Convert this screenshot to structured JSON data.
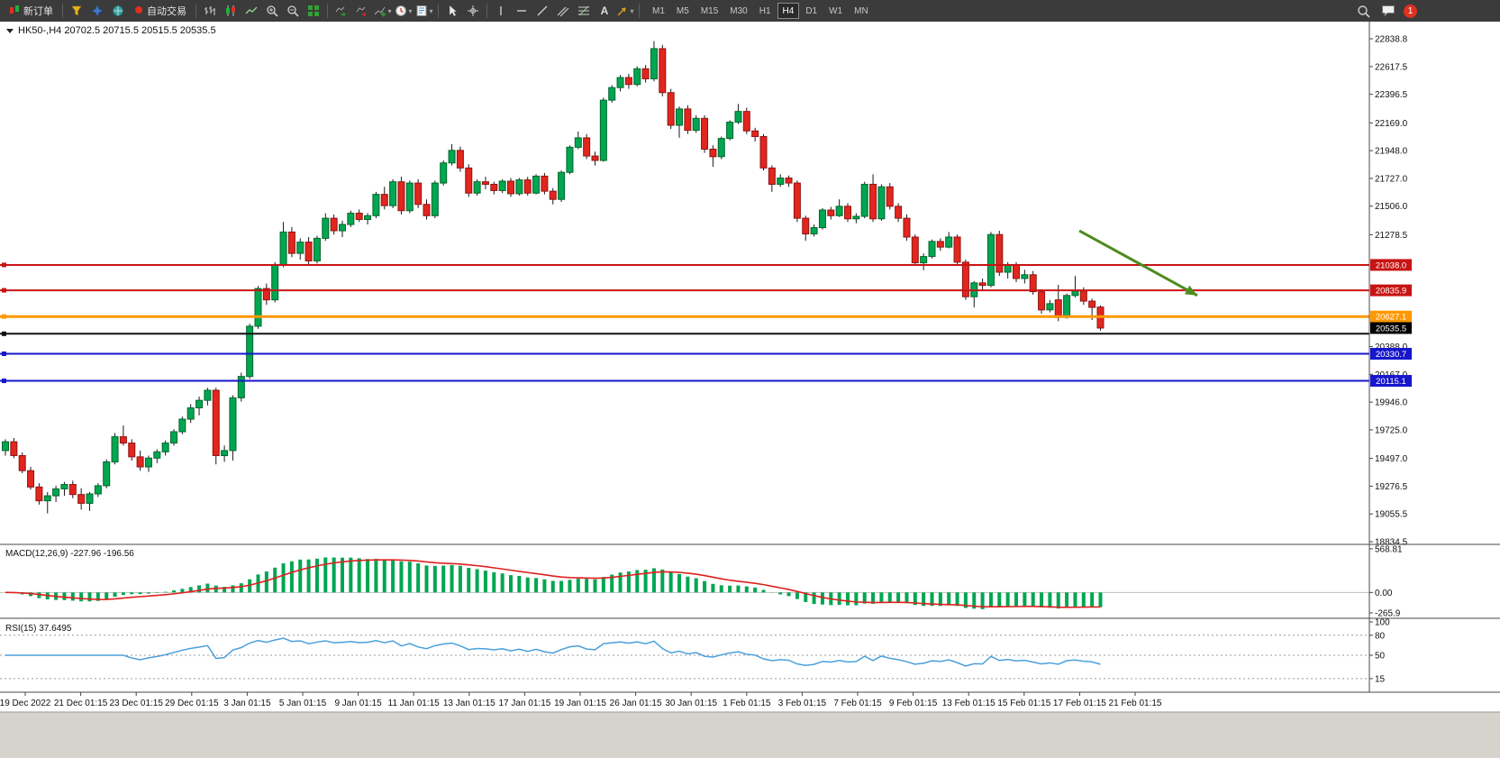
{
  "toolbar": {
    "new_order": "新订单",
    "auto_trading": "自动交易",
    "timeframes": [
      "M1",
      "M5",
      "M15",
      "M30",
      "H1",
      "H4",
      "D1",
      "W1",
      "MN"
    ],
    "active_timeframe": "H4",
    "badge_count": "1",
    "text_tool": "A"
  },
  "chart_data": {
    "type": "candlestick",
    "symbol": "HK50-",
    "timeframe": "H4",
    "title": "HK50-,H4",
    "ohlc_text": "20702.5 20715.5 20515.5 20535.5",
    "colors": {
      "up": "#00a651",
      "up_border": "#00662a",
      "down": "#e2261d",
      "down_border": "#8f1414",
      "signal": "#e02020",
      "rsi": "#4aa0dc",
      "wick": "#1a1a1a"
    },
    "y_axis": {
      "min": 18834.5,
      "max": 22838.8,
      "plain_labels": [
        {
          "v": 22838.8,
          "t": "22838.8"
        },
        {
          "v": 22617.5,
          "t": "22617.5"
        },
        {
          "v": 22396.5,
          "t": "22396.5"
        },
        {
          "v": 22169.0,
          "t": "22169.0"
        },
        {
          "v": 21948.0,
          "t": "21948.0"
        },
        {
          "v": 21727.0,
          "t": "21727.0"
        },
        {
          "v": 21506.0,
          "t": "21506.0"
        },
        {
          "v": 21278.5,
          "t": "21278.5"
        },
        {
          "v": 20388.0,
          "t": "20388.0"
        },
        {
          "v": 20167.0,
          "t": "20167.0"
        },
        {
          "v": 19946.0,
          "t": "19946.0"
        },
        {
          "v": 19725.0,
          "t": "19725.0"
        },
        {
          "v": 19497.0,
          "t": "19497.0"
        },
        {
          "v": 19276.5,
          "t": "19276.5"
        },
        {
          "v": 19055.5,
          "t": "19055.5"
        },
        {
          "v": 18834.5,
          "t": "18834.5"
        }
      ]
    },
    "price_lines": [
      {
        "price": 21038.0,
        "label": "21038.0",
        "color": "#c81414",
        "line": true,
        "badge": true,
        "width": 2
      },
      {
        "price": 20835.9,
        "label": "20835.9",
        "color": "#c81414",
        "line": true,
        "badge": true,
        "width": 2
      },
      {
        "price": 20627.1,
        "label": "20627.1",
        "color": "#ff9800",
        "line": true,
        "badge": true,
        "width": 3
      },
      {
        "price": 20535.5,
        "label": "20535.5",
        "color": "#000000",
        "line": false,
        "badge": true,
        "width": 0
      },
      {
        "price": 20490.0,
        "label": "",
        "color": "#111111",
        "line": true,
        "badge": false,
        "width": 2
      },
      {
        "price": 20330.7,
        "label": "20330.7",
        "color": "#1616cc",
        "line": true,
        "badge": true,
        "width": 2
      },
      {
        "price": 20115.1,
        "label": "20115.1",
        "color": "#1616cc",
        "line": true,
        "badge": true,
        "width": 2
      }
    ],
    "candles": [
      [
        19560,
        19650,
        19520,
        19630
      ],
      [
        19630,
        19660,
        19500,
        19520
      ],
      [
        19520,
        19545,
        19380,
        19400
      ],
      [
        19400,
        19430,
        19250,
        19270
      ],
      [
        19270,
        19300,
        19130,
        19160
      ],
      [
        19160,
        19230,
        19060,
        19200
      ],
      [
        19200,
        19280,
        19150,
        19255
      ],
      [
        19255,
        19310,
        19200,
        19290
      ],
      [
        19290,
        19320,
        19180,
        19210
      ],
      [
        19210,
        19260,
        19090,
        19140
      ],
      [
        19140,
        19230,
        19080,
        19215
      ],
      [
        19215,
        19300,
        19190,
        19280
      ],
      [
        19280,
        19490,
        19260,
        19470
      ],
      [
        19470,
        19700,
        19450,
        19670
      ],
      [
        19670,
        19760,
        19600,
        19620
      ],
      [
        19620,
        19650,
        19480,
        19510
      ],
      [
        19510,
        19560,
        19400,
        19430
      ],
      [
        19430,
        19520,
        19390,
        19500
      ],
      [
        19500,
        19570,
        19460,
        19550
      ],
      [
        19550,
        19640,
        19520,
        19620
      ],
      [
        19620,
        19730,
        19600,
        19710
      ],
      [
        19710,
        19830,
        19690,
        19810
      ],
      [
        19810,
        19930,
        19780,
        19900
      ],
      [
        19900,
        19990,
        19840,
        19960
      ],
      [
        19960,
        20060,
        19920,
        20040
      ],
      [
        20040,
        20060,
        19450,
        19520
      ],
      [
        19520,
        19600,
        19470,
        19560
      ],
      [
        19560,
        20000,
        19480,
        19980
      ],
      [
        19980,
        20180,
        19950,
        20150
      ],
      [
        20150,
        20570,
        20130,
        20550
      ],
      [
        20550,
        20870,
        20530,
        20850
      ],
      [
        20850,
        20890,
        20720,
        20760
      ],
      [
        20760,
        21060,
        20740,
        21040
      ],
      [
        21040,
        21380,
        21020,
        21300
      ],
      [
        21300,
        21340,
        21100,
        21130
      ],
      [
        21130,
        21250,
        21080,
        21220
      ],
      [
        21220,
        21260,
        21040,
        21070
      ],
      [
        21070,
        21270,
        21050,
        21250
      ],
      [
        21250,
        21450,
        21230,
        21410
      ],
      [
        21410,
        21440,
        21280,
        21310
      ],
      [
        21310,
        21390,
        21260,
        21360
      ],
      [
        21360,
        21470,
        21340,
        21450
      ],
      [
        21450,
        21480,
        21380,
        21400
      ],
      [
        21400,
        21450,
        21360,
        21430
      ],
      [
        21430,
        21620,
        21410,
        21600
      ],
      [
        21600,
        21660,
        21480,
        21510
      ],
      [
        21510,
        21720,
        21490,
        21700
      ],
      [
        21700,
        21740,
        21440,
        21470
      ],
      [
        21470,
        21710,
        21450,
        21690
      ],
      [
        21690,
        21720,
        21490,
        21520
      ],
      [
        21520,
        21560,
        21400,
        21430
      ],
      [
        21430,
        21710,
        21410,
        21690
      ],
      [
        21690,
        21870,
        21670,
        21850
      ],
      [
        21850,
        22000,
        21830,
        21950
      ],
      [
        21950,
        21980,
        21780,
        21810
      ],
      [
        21810,
        21840,
        21580,
        21610
      ],
      [
        21610,
        21720,
        21590,
        21700
      ],
      [
        21700,
        21740,
        21640,
        21680
      ],
      [
        21680,
        21700,
        21600,
        21630
      ],
      [
        21630,
        21720,
        21610,
        21705
      ],
      [
        21705,
        21730,
        21580,
        21605
      ],
      [
        21605,
        21730,
        21590,
        21715
      ],
      [
        21715,
        21740,
        21590,
        21610
      ],
      [
        21610,
        21760,
        21600,
        21745
      ],
      [
        21745,
        21770,
        21600,
        21625
      ],
      [
        21625,
        21650,
        21520,
        21560
      ],
      [
        21560,
        21790,
        21540,
        21775
      ],
      [
        21775,
        21990,
        21760,
        21975
      ],
      [
        21975,
        22100,
        21960,
        22050
      ],
      [
        22050,
        22080,
        21880,
        21905
      ],
      [
        21905,
        21940,
        21830,
        21870
      ],
      [
        21870,
        22370,
        21860,
        22350
      ],
      [
        22350,
        22470,
        22330,
        22450
      ],
      [
        22450,
        22550,
        22420,
        22530
      ],
      [
        22530,
        22560,
        22440,
        22475
      ],
      [
        22475,
        22620,
        22460,
        22600
      ],
      [
        22600,
        22630,
        22490,
        22520
      ],
      [
        22520,
        22820,
        22500,
        22760
      ],
      [
        22760,
        22790,
        22380,
        22410
      ],
      [
        22410,
        22440,
        22120,
        22150
      ],
      [
        22150,
        22300,
        22050,
        22280
      ],
      [
        22280,
        22310,
        22080,
        22110
      ],
      [
        22110,
        22230,
        22090,
        22205
      ],
      [
        22205,
        22230,
        21930,
        21960
      ],
      [
        21960,
        21990,
        21820,
        21900
      ],
      [
        21900,
        22060,
        21880,
        22045
      ],
      [
        22045,
        22190,
        22030,
        22175
      ],
      [
        22175,
        22320,
        22160,
        22260
      ],
      [
        22260,
        22290,
        22080,
        22105
      ],
      [
        22105,
        22130,
        22020,
        22060
      ],
      [
        22060,
        22080,
        21790,
        21810
      ],
      [
        21810,
        21830,
        21620,
        21680
      ],
      [
        21680,
        21760,
        21660,
        21730
      ],
      [
        21730,
        21750,
        21660,
        21690
      ],
      [
        21690,
        21710,
        21380,
        21410
      ],
      [
        21410,
        21430,
        21230,
        21285
      ],
      [
        21285,
        21360,
        21265,
        21335
      ],
      [
        21335,
        21490,
        21320,
        21475
      ],
      [
        21475,
        21500,
        21400,
        21430
      ],
      [
        21430,
        21560,
        21420,
        21505
      ],
      [
        21505,
        21530,
        21380,
        21405
      ],
      [
        21405,
        21450,
        21370,
        21425
      ],
      [
        21425,
        21700,
        21410,
        21680
      ],
      [
        21680,
        21760,
        21380,
        21405
      ],
      [
        21405,
        21680,
        21390,
        21660
      ],
      [
        21660,
        21690,
        21480,
        21505
      ],
      [
        21505,
        21530,
        21380,
        21410
      ],
      [
        21410,
        21440,
        21230,
        21260
      ],
      [
        21260,
        21280,
        21030,
        21055
      ],
      [
        21055,
        21130,
        20995,
        21105
      ],
      [
        21105,
        21240,
        21090,
        21225
      ],
      [
        21225,
        21250,
        21150,
        21180
      ],
      [
        21180,
        21300,
        21170,
        21260
      ],
      [
        21260,
        21280,
        21030,
        21060
      ],
      [
        21060,
        21080,
        20760,
        20785
      ],
      [
        20785,
        20910,
        20700,
        20895
      ],
      [
        20895,
        20930,
        20830,
        20875
      ],
      [
        20875,
        21300,
        20860,
        21280
      ],
      [
        21280,
        21310,
        20950,
        20980
      ],
      [
        20980,
        21060,
        20930,
        21040
      ],
      [
        21040,
        21060,
        20900,
        20930
      ],
      [
        20930,
        21000,
        20890,
        20960
      ],
      [
        20960,
        20990,
        20800,
        20825
      ],
      [
        20825,
        20845,
        20650,
        20680
      ],
      [
        20680,
        20760,
        20660,
        20730
      ],
      [
        20760,
        20880,
        20590,
        20620
      ],
      [
        20620,
        20810,
        20610,
        20795
      ],
      [
        20795,
        20950,
        20780,
        20830
      ],
      [
        20830,
        20860,
        20720,
        20750
      ],
      [
        20750,
        20770,
        20600,
        20700
      ],
      [
        20702.5,
        20715.5,
        20515.5,
        20535.5
      ]
    ],
    "x_axis_labels": [
      "19 Dec 2022",
      "21 Dec 01:15",
      "23 Dec 01:15",
      "29 Dec 01:15",
      "3 Jan 01:15",
      "5 Jan 01:15",
      "9 Jan 01:15",
      "11 Jan 01:15",
      "13 Jan 01:15",
      "17 Jan 01:15",
      "19 Jan 01:15",
      "26 Jan 01:15",
      "30 Jan 01:15",
      "1 Feb 01:15",
      "3 Feb 01:15",
      "7 Feb 01:15",
      "9 Feb 01:15",
      "13 Feb 01:15",
      "15 Feb 01:15",
      "17 Feb 01:15",
      "21 Feb 01:15"
    ],
    "macd": {
      "name": "MACD(12,26,9)",
      "values_text": "-227.96 -196.56",
      "fast": 12,
      "slow": 26,
      "signal": 9,
      "axis_labels": [
        {
          "v": 568.81,
          "t": "568.81"
        },
        {
          "v": 0,
          "t": "0.00"
        },
        {
          "v": -265.9,
          "t": "-265.9"
        }
      ]
    },
    "rsi": {
      "name": "RSI(15)",
      "value_text": "37.6495",
      "period": 15,
      "levels": [
        80,
        50,
        15
      ],
      "axis_labels": [
        {
          "v": 100,
          "t": "100"
        },
        {
          "v": 80,
          "t": "80"
        },
        {
          "v": 50,
          "t": "50"
        },
        {
          "v": 15,
          "t": "15"
        }
      ]
    },
    "annotation_arrow": {
      "from": {
        "index": 127.5,
        "price": 21310
      },
      "to": {
        "index": 141.5,
        "price": 20795
      },
      "color": "#4e8c1e"
    }
  }
}
